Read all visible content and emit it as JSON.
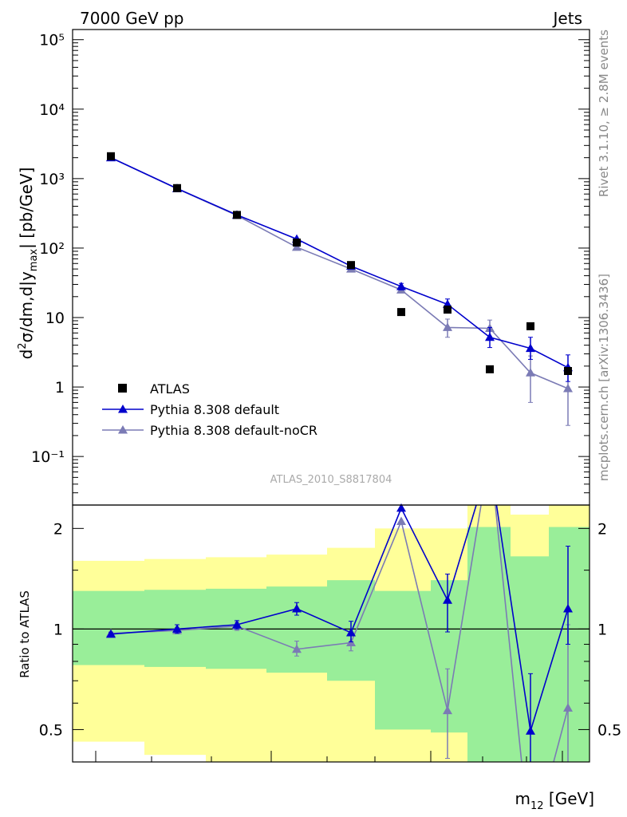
{
  "header": {
    "left": "7000 GeV pp",
    "right": "Jets"
  },
  "side_labels": {
    "rivet": "Rivet 3.1.10, ≥ 2.8M events",
    "mcplots": "mcplots.cern.ch [arXiv:1306.3436]"
  },
  "watermark": "ATLAS_2010_S8817804",
  "axes": {
    "ylabel_main": "d²σ/dm,d|y_max| [pb/GeV]",
    "ylabel_ratio": "Ratio to ATLAS",
    "xlabel": "m12 [GeV]"
  },
  "colors": {
    "atlas": "#000000",
    "pythia_default": "#0000cc",
    "pythia_nocr": "#7b7bb5",
    "band_inner": "#99ee99",
    "band_outer": "#ffff99"
  },
  "legend": [
    {
      "label": "ATLAS",
      "marker": "square",
      "color": "#000000"
    },
    {
      "label": "Pythia 8.308 default",
      "marker": "triangle",
      "color": "#0000cc"
    },
    {
      "label": "Pythia 8.308 default-noCR",
      "marker": "triangle",
      "color": "#7b7bb5"
    }
  ],
  "chart_data": [
    {
      "type": "scatter",
      "panel": "main",
      "title": "",
      "xlabel": "m12 [GeV]",
      "ylabel": "d²σ/dm,d|y_max| [pb/GeV]",
      "yscale": "log",
      "ylim": [
        0.02,
        140000
      ],
      "yticks": [
        "10⁻¹",
        "1",
        "10",
        "10²",
        "10³",
        "10⁴",
        "10⁵"
      ],
      "yticks_values": [
        0.1,
        1,
        10,
        100,
        1000,
        10000,
        100000
      ],
      "x": [
        1,
        2,
        3,
        4,
        5,
        6,
        7,
        8,
        9,
        10
      ],
      "series": [
        {
          "name": "ATLAS",
          "values": [
            2100,
            730,
            300,
            120,
            57,
            12,
            13,
            1.8,
            7.5,
            1.7
          ]
        },
        {
          "name": "Pythia 8.308 default",
          "values": [
            2000,
            720,
            300,
            135,
            55,
            28,
            15.5,
            5.2,
            3.6,
            1.9
          ],
          "err_low": [
            0,
            0,
            0,
            0,
            0,
            3,
            2.5,
            1.5,
            1.1,
            0.7
          ],
          "err_high": [
            0,
            0,
            0,
            0,
            0,
            3,
            3,
            2,
            1.6,
            1.0
          ]
        },
        {
          "name": "Pythia 8.308 default-noCR",
          "values": [
            2000,
            715,
            295,
            103,
            50,
            25,
            7.2,
            7.0,
            1.6,
            0.95
          ],
          "err_low": [
            0,
            0,
            0,
            0,
            0,
            2,
            2,
            2,
            1.0,
            0.67
          ],
          "err_high": [
            0,
            0,
            0,
            0,
            0,
            2,
            2.3,
            2.2,
            1.2,
            1.0
          ]
        }
      ]
    },
    {
      "type": "line",
      "panel": "ratio",
      "ylabel": "Ratio to ATLAS",
      "yscale": "log",
      "ylim": [
        0.4,
        2.35
      ],
      "yticks": [
        "0.5",
        "1",
        "2"
      ],
      "yticks_values": [
        0.5,
        1,
        2
      ],
      "x": [
        1,
        2,
        3,
        4,
        5,
        6,
        7,
        8,
        9,
        10
      ],
      "band_bins": [
        {
          "inner": [
            0.78,
            1.3
          ],
          "outer": [
            0.46,
            1.6
          ]
        },
        {
          "inner": [
            0.77,
            1.31
          ],
          "outer": [
            0.42,
            1.62
          ]
        },
        {
          "inner": [
            0.76,
            1.32
          ],
          "outer": [
            0.37,
            1.64
          ]
        },
        {
          "inner": [
            0.74,
            1.34
          ],
          "outer": [
            0.34,
            1.67
          ]
        },
        {
          "inner": [
            0.7,
            1.4
          ],
          "outer": [
            0.28,
            1.75
          ]
        },
        {
          "inner": [
            0.5,
            1.3
          ],
          "outer": [
            0.2,
            2.0
          ]
        },
        {
          "inner": [
            0.49,
            1.4
          ],
          "outer": [
            0.2,
            2.0
          ]
        },
        {
          "inner": [
            0.25,
            2.02
          ],
          "outer": [
            0.1,
            3.0
          ]
        },
        {
          "inner": [
            0.3,
            1.65
          ],
          "outer": [
            0.38,
            2.2
          ]
        },
        {
          "inner": [
            0.25,
            2.02
          ],
          "outer": [
            0.1,
            3.0
          ]
        }
      ],
      "series": [
        {
          "name": "Pythia 8.308 default",
          "values": [
            0.965,
            1.0,
            1.03,
            1.15,
            0.975,
            2.3,
            1.22,
            3.2,
            0.495,
            1.15
          ],
          "err_low": [
            0.01,
            0.03,
            0.03,
            0.05,
            0.06,
            0,
            0.24,
            0,
            0.15,
            0.25
          ],
          "err_high": [
            0.01,
            0.03,
            0.03,
            0.05,
            0.08,
            0,
            0.24,
            0,
            0.24,
            0.62
          ]
        },
        {
          "name": "Pythia 8.308 default-noCR",
          "values": [
            0.97,
            0.99,
            1.02,
            0.87,
            0.91,
            2.1,
            0.57,
            3.4,
            0.22,
            0.58
          ],
          "err_low": [
            0.01,
            0.02,
            0.03,
            0.04,
            0.05,
            0,
            0.16,
            0,
            0.1,
            0.22
          ],
          "err_high": [
            0.01,
            0.02,
            0.03,
            0.05,
            0.05,
            0,
            0.19,
            0,
            0.1,
            0.45
          ]
        }
      ]
    }
  ]
}
